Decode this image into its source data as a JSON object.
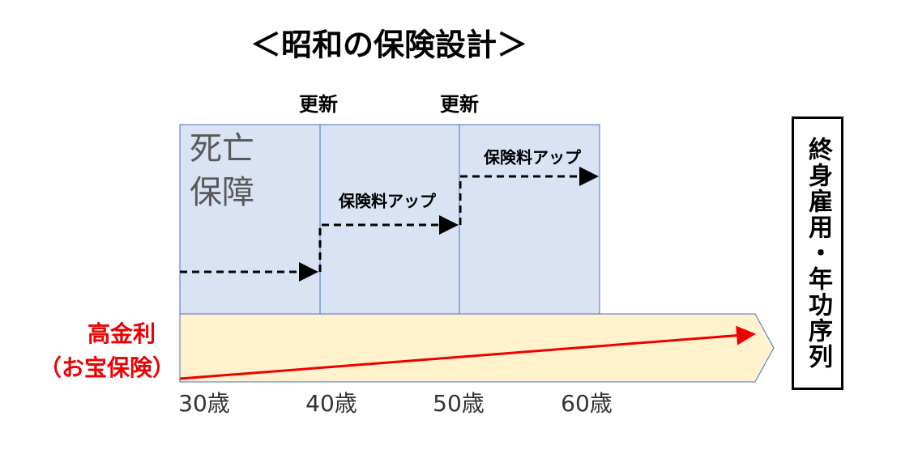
{
  "title": "＜昭和の保険設計＞",
  "renewals": [
    "更新",
    "更新"
  ],
  "coverage_label": [
    "死亡",
    "保障"
  ],
  "premium_labels": [
    "保険料アップ",
    "保険料アップ"
  ],
  "interest_label": [
    "高金利",
    "（お宝保険）"
  ],
  "ages": [
    "30歳",
    "40歳",
    "50歳",
    "60歳"
  ],
  "side_label": "終身雇用・年功序列"
}
